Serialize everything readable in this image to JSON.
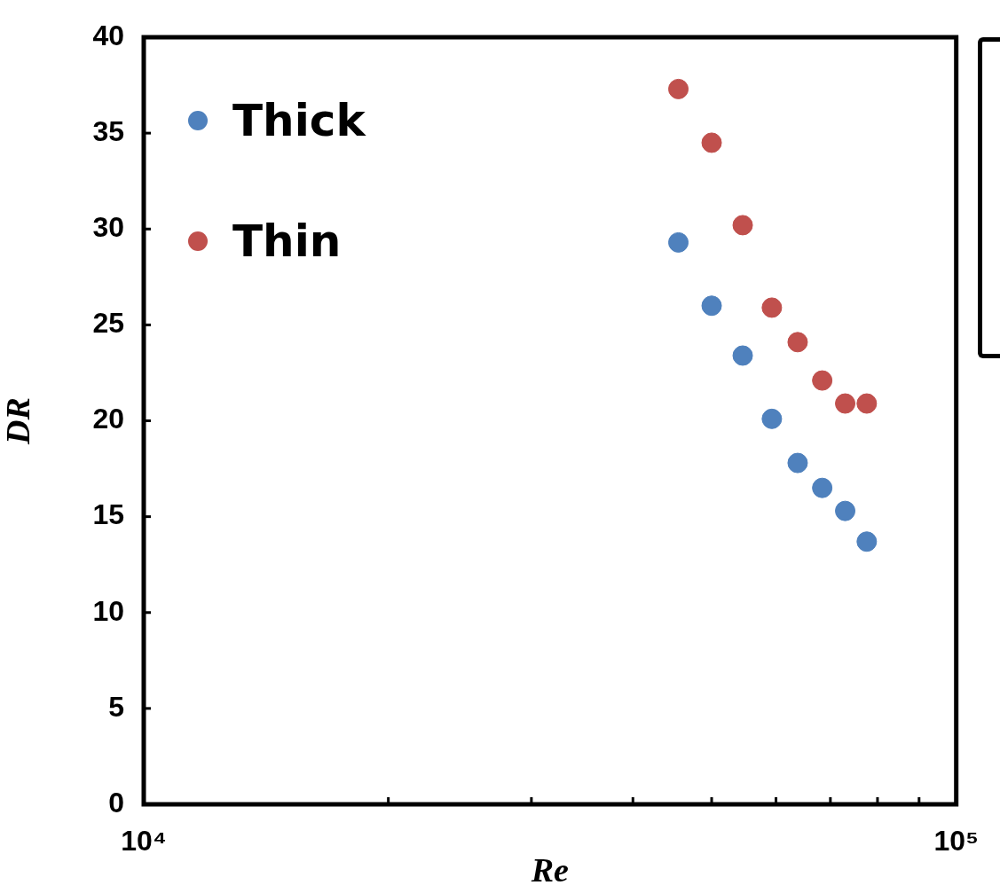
{
  "chart_data": {
    "type": "scatter",
    "xlabel": "Re",
    "ylabel": "DR",
    "log": "x",
    "xlim": [
      10000,
      100000
    ],
    "xticks": [
      {
        "value": 10000,
        "label": "10⁴"
      },
      {
        "value": 20000,
        "label": null
      },
      {
        "value": 30000,
        "label": null
      },
      {
        "value": 40000,
        "label": null
      },
      {
        "value": 50000,
        "label": null
      },
      {
        "value": 60000,
        "label": null
      },
      {
        "value": 70000,
        "label": null
      },
      {
        "value": 80000,
        "label": null
      },
      {
        "value": 90000,
        "label": null
      },
      {
        "value": 100000,
        "label": "10⁵"
      }
    ],
    "ylim": [
      0,
      40
    ],
    "yticks": [
      0,
      5,
      10,
      15,
      20,
      25,
      30,
      35,
      40
    ],
    "grid": false,
    "legend": "top left",
    "marker": "circle",
    "series": [
      {
        "name": "Thick",
        "color": "#4f81bd",
        "x": [
          45500,
          50000,
          54600,
          59300,
          63800,
          68400,
          73000,
          77600
        ],
        "values": [
          29.3,
          26.0,
          23.4,
          20.1,
          17.8,
          16.5,
          15.3,
          13.7
        ]
      },
      {
        "name": "Thin",
        "color": "#c0504d",
        "x": [
          45500,
          50000,
          54600,
          59300,
          63800,
          68400,
          73000,
          77600
        ],
        "values": [
          37.3,
          34.5,
          30.2,
          25.9,
          24.1,
          22.1,
          20.9,
          20.9
        ]
      }
    ]
  }
}
